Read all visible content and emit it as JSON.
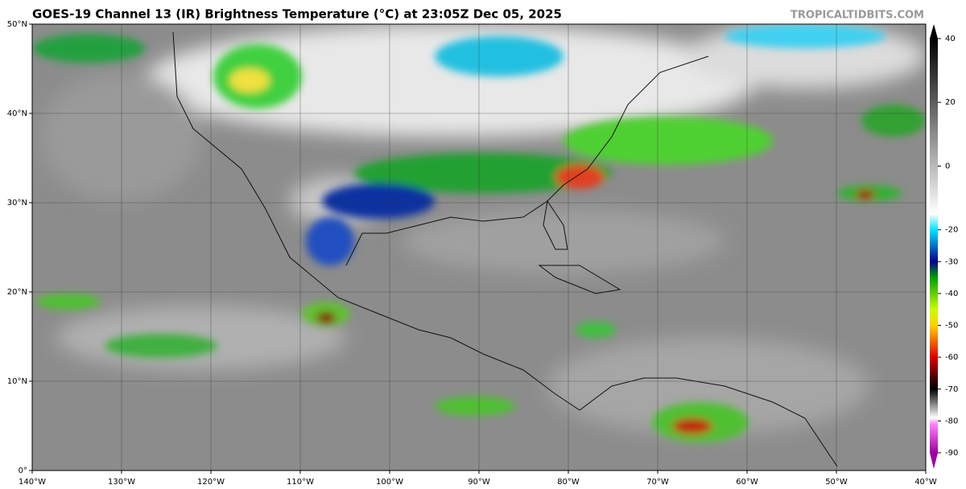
{
  "header": {
    "title": "GOES-19 Channel 13 (IR) Brightness Temperature (°C) at 23:05Z Dec 05, 2025",
    "credit": "TROPICALTIDBITS.COM"
  },
  "map": {
    "latlim": [
      0,
      50
    ],
    "lonlim": [
      -140,
      -40
    ],
    "lat_ticks": [
      {
        "value": 50,
        "label": "50°N"
      },
      {
        "value": 40,
        "label": "40°N"
      },
      {
        "value": 30,
        "label": "30°N"
      },
      {
        "value": 20,
        "label": "20°N"
      },
      {
        "value": 10,
        "label": "10°N"
      },
      {
        "value": 0,
        "label": "0°"
      }
    ],
    "lon_ticks": [
      {
        "value": -140,
        "label": "140°W"
      },
      {
        "value": -130,
        "label": "130°W"
      },
      {
        "value": -120,
        "label": "120°W"
      },
      {
        "value": -110,
        "label": "110°W"
      },
      {
        "value": -100,
        "label": "100°W"
      },
      {
        "value": -90,
        "label": "90°W"
      },
      {
        "value": -80,
        "label": "80°W"
      },
      {
        "value": -70,
        "label": "70°W"
      },
      {
        "value": -60,
        "label": "60°W"
      },
      {
        "value": -50,
        "label": "50°W"
      },
      {
        "value": -40,
        "label": "40°W"
      }
    ]
  },
  "colorbar": {
    "lim": [
      -90,
      40
    ],
    "ticks": [
      40,
      20,
      0,
      -20,
      -30,
      -40,
      -50,
      -60,
      -70,
      -80,
      -90
    ],
    "stops": [
      {
        "value": 40,
        "color": "#000000"
      },
      {
        "value": -15,
        "color": "#ffffff"
      },
      {
        "value": -20,
        "color": "#00e5ff"
      },
      {
        "value": -30,
        "color": "#000090"
      },
      {
        "value": -35,
        "color": "#00a000"
      },
      {
        "value": -45,
        "color": "#c8ff00"
      },
      {
        "value": -50,
        "color": "#ffd000"
      },
      {
        "value": -60,
        "color": "#e00000"
      },
      {
        "value": -66,
        "color": "#500000"
      },
      {
        "value": -70,
        "color": "#000000"
      },
      {
        "value": -79,
        "color": "#ffffff"
      },
      {
        "value": -81,
        "color": "#ff80ff"
      },
      {
        "value": -90,
        "color": "#a000a0"
      }
    ]
  }
}
